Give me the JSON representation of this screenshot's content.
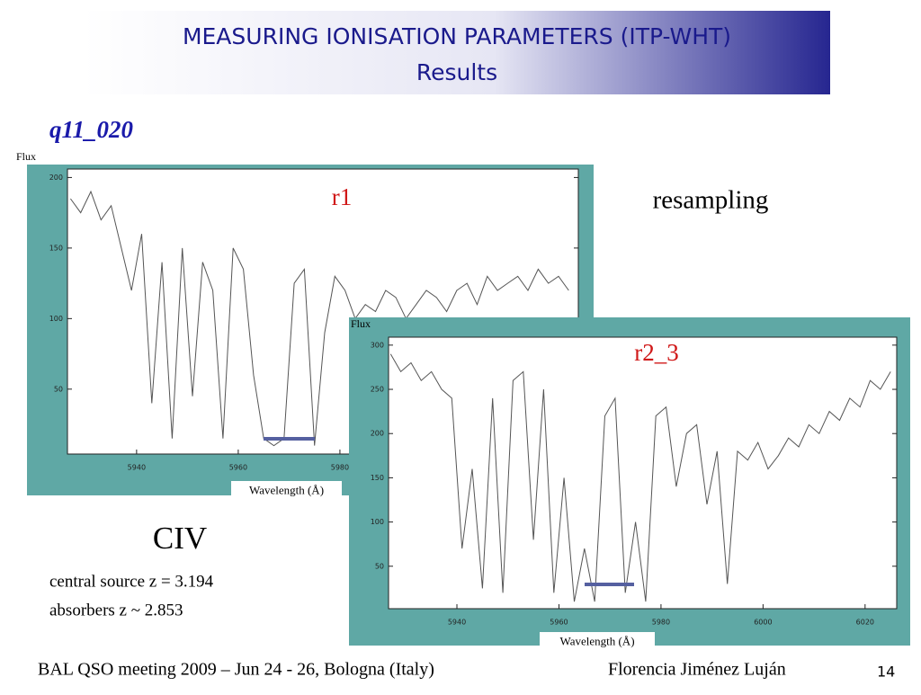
{
  "header": {
    "title": "MEASURING IONISATION PARAMETERS (ITP-WHT)",
    "subtitle": "Results"
  },
  "object_name": "q11_020",
  "chart_data": [
    {
      "type": "line",
      "ylabel": "Flux",
      "xlabel": "Wavelength (Å)",
      "annotation": "r1",
      "xlim": [
        5926.4,
        6026.9
      ],
      "ylim": [
        4,
        206
      ],
      "xticks": [
        5940,
        5960,
        5980
      ],
      "yticks": [
        50,
        100,
        150,
        200
      ],
      "x": [
        5927,
        5929,
        5931,
        5933,
        5935,
        5937,
        5939,
        5941,
        5943,
        5945,
        5947,
        5949,
        5951,
        5953,
        5955,
        5957,
        5959,
        5961,
        5963,
        5965,
        5967,
        5969,
        5971,
        5973,
        5975,
        5977,
        5979,
        5981,
        5983,
        5985,
        5987,
        5989,
        5991,
        5993,
        5995,
        5997,
        5999,
        6001,
        6003,
        6005,
        6007,
        6009,
        6011,
        6013,
        6015,
        6017,
        6019,
        6021,
        6023,
        6025
      ],
      "series": [
        {
          "color": "#555555",
          "values": [
            185,
            175,
            190,
            170,
            180,
            150,
            120,
            160,
            40,
            140,
            15,
            150,
            45,
            140,
            120,
            15,
            150,
            135,
            60,
            15,
            10,
            15,
            125,
            135,
            10,
            90,
            130,
            120,
            100,
            110,
            105,
            120,
            115,
            100,
            110,
            120,
            115,
            105,
            120,
            125,
            110,
            130,
            120,
            125,
            130,
            120,
            135,
            125,
            130,
            120
          ]
        }
      ]
    },
    {
      "type": "line",
      "ylabel": "Flux",
      "xlabel": "Wavelength (Å)",
      "annotation": "r2_3",
      "xlim": [
        5926.6,
        6026.2
      ],
      "ylim": [
        2,
        309
      ],
      "xticks": [
        5940,
        5960,
        5980,
        6000,
        6020
      ],
      "yticks": [
        50,
        100,
        150,
        200,
        250,
        300
      ],
      "x": [
        5927,
        5929,
        5931,
        5933,
        5935,
        5937,
        5939,
        5941,
        5943,
        5945,
        5947,
        5949,
        5951,
        5953,
        5955,
        5957,
        5959,
        5961,
        5963,
        5965,
        5967,
        5969,
        5971,
        5973,
        5975,
        5977,
        5979,
        5981,
        5983,
        5985,
        5987,
        5989,
        5991,
        5993,
        5995,
        5997,
        5999,
        6001,
        6003,
        6005,
        6007,
        6009,
        6011,
        6013,
        6015,
        6017,
        6019,
        6021,
        6023,
        6025
      ],
      "series": [
        {
          "color": "#555555",
          "values": [
            290,
            270,
            280,
            260,
            270,
            250,
            240,
            70,
            160,
            25,
            240,
            20,
            260,
            270,
            80,
            250,
            20,
            150,
            10,
            70,
            10,
            220,
            240,
            20,
            100,
            10,
            220,
            230,
            140,
            200,
            210,
            120,
            180,
            30,
            180,
            170,
            190,
            160,
            175,
            195,
            185,
            210,
            200,
            225,
            215,
            240,
            230,
            260,
            250,
            270
          ]
        }
      ]
    }
  ],
  "method": "resampling",
  "line_name": "CIV",
  "notes": [
    "central source z = 3.194",
    "absorbers z ~ 2.853"
  ],
  "footer": {
    "meeting": "BAL QSO meeting 2009 – Jun 24 - 26, Bologna (Italy)",
    "author": "Florencia Jiménez Luján",
    "page": "14"
  }
}
